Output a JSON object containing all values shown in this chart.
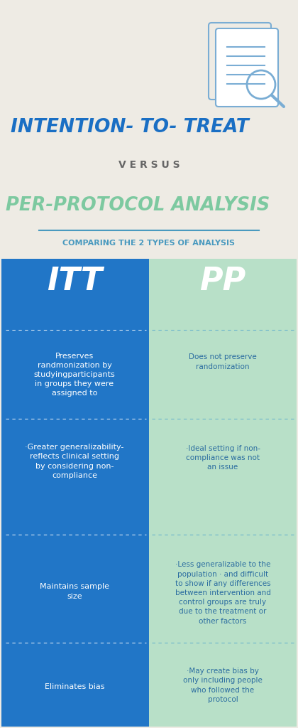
{
  "bg_color": "#eeebe4",
  "title1": "INTENTION- TO- TREAT",
  "title1_color": "#1a6fc4",
  "versus": "V E R S U S",
  "versus_color": "#666666",
  "title2": "PER-PROTOCOL ANALYSIS",
  "title2_color": "#7dc9a0",
  "subtitle": "COMPARING THE 2 TYPES OF ANALYSIS",
  "subtitle_color": "#4a9abf",
  "itt_bg": "#2176c7",
  "pp_bg": "#b8e0c8",
  "itt_label": "ITT",
  "pp_label": "PP",
  "label_color": "#ffffff",
  "rows": [
    {
      "itt": "Preserves\nrandmonization by\nstudyingparticipants\nin groups they were\nassigned to",
      "pp": "Does not preserve\nrandomization"
    },
    {
      "itt": "·Greater generalizability-\nreflects clinical setting\nby considering non-\ncompliance",
      "pp": "·Ideal setting if non-\ncompliance was not\nan issue"
    },
    {
      "itt": "Maintains sample\nsize",
      "pp": "·Less generalizable to the\npopulation · and difficult\nto show if any differences\nbetween intervention and\ncontrol groups are truly\ndue to the treatment or\nother factors"
    },
    {
      "itt": "Eliminates bias",
      "pp": "·May create bias by\nonly including people\nwho followed the\nprotocol"
    }
  ],
  "row_text_color_itt": "#ffffff",
  "row_text_color_pp": "#2a6ca0",
  "icon_color": "#7aadd4",
  "divider_color": "#4a9abf"
}
